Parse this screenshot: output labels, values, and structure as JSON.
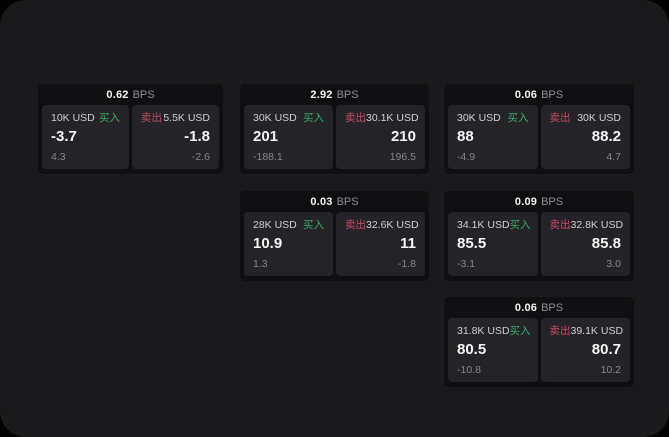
{
  "colors": {
    "panel_bg": "#1a1a1c",
    "card_bg": "#0f0f11",
    "pane_bg": "#242428",
    "buy_green": "#3cab62",
    "sell_red": "#c74a64"
  },
  "labels": {
    "bps": "BPS",
    "buy": "买入",
    "sell": "卖出"
  },
  "cards": [
    {
      "bps": "0.62",
      "buy": {
        "amount": "10K USD",
        "value": "-3.7",
        "delta": "4.3"
      },
      "sell": {
        "amount": "5.5K USD",
        "value": "-1.8",
        "delta": "-2.6"
      }
    },
    {
      "bps": "2.92",
      "buy": {
        "amount": "30K USD",
        "value": "201",
        "delta": "-188.1"
      },
      "sell": {
        "amount": "30.1K USD",
        "value": "210",
        "delta": "196.5"
      }
    },
    {
      "bps": "0.06",
      "buy": {
        "amount": "30K USD",
        "value": "88",
        "delta": "-4.9"
      },
      "sell": {
        "amount": "30K USD",
        "value": "88.2",
        "delta": "4.7"
      }
    },
    {
      "bps": "0.03",
      "buy": {
        "amount": "28K USD",
        "value": "10.9",
        "delta": "1.3"
      },
      "sell": {
        "amount": "32.6K USD",
        "value": "11",
        "delta": "-1.8"
      }
    },
    {
      "bps": "0.09",
      "buy": {
        "amount": "34.1K USD",
        "value": "85.5",
        "delta": "-3.1"
      },
      "sell": {
        "amount": "32.8K USD",
        "value": "85.8",
        "delta": "3.0"
      }
    },
    {
      "bps": "0.06",
      "buy": {
        "amount": "31.8K USD",
        "value": "80.5",
        "delta": "-10.8"
      },
      "sell": {
        "amount": "39.1K USD",
        "value": "80.7",
        "delta": "10.2"
      }
    }
  ]
}
